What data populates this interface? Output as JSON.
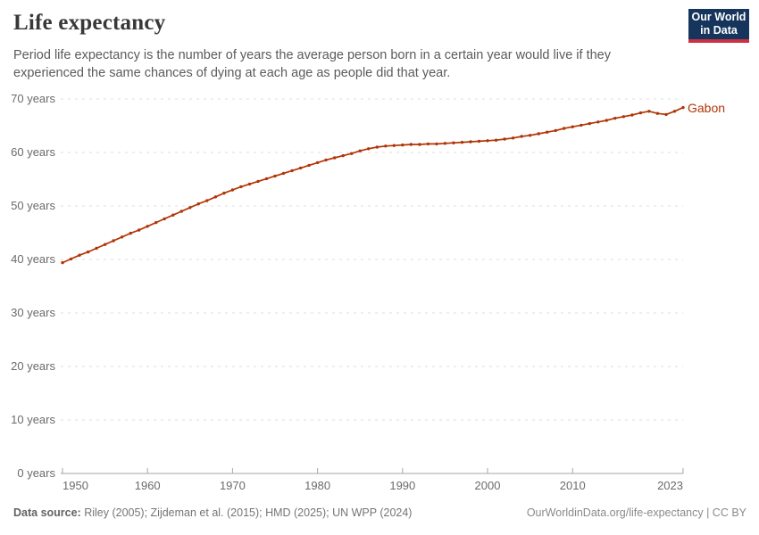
{
  "header": {
    "title": "Life expectancy",
    "subtitle": "Period life expectancy is the number of years the average person born in a certain year would live if they experienced the same chances of dying at each age as people did that year."
  },
  "logo": {
    "line1": "Our World",
    "line2": "in Data",
    "bg_color": "#16355c",
    "accent_color": "#cb3043"
  },
  "chart_data": {
    "type": "line",
    "title": "Life expectancy",
    "entity_label": "Gabon",
    "line_color": "#b13507",
    "grid": "dashed-horizontal",
    "legend_position": "end-of-line-label",
    "xlim": [
      1950,
      2023
    ],
    "ylim": [
      0,
      70
    ],
    "x_ticks": [
      1950,
      1960,
      1970,
      1980,
      1990,
      2000,
      2010,
      2023
    ],
    "x_tick_labels": [
      "1950",
      "1960",
      "1970",
      "1980",
      "1990",
      "2000",
      "2010",
      "2023"
    ],
    "y_ticks": [
      0,
      10,
      20,
      30,
      40,
      50,
      60,
      70
    ],
    "y_tick_labels": [
      "0 years",
      "10 years",
      "20 years",
      "30 years",
      "40 years",
      "50 years",
      "60 years",
      "70 years"
    ],
    "x": [
      1950,
      1951,
      1952,
      1953,
      1954,
      1955,
      1956,
      1957,
      1958,
      1959,
      1960,
      1961,
      1962,
      1963,
      1964,
      1965,
      1966,
      1967,
      1968,
      1969,
      1970,
      1971,
      1972,
      1973,
      1974,
      1975,
      1976,
      1977,
      1978,
      1979,
      1980,
      1981,
      1982,
      1983,
      1984,
      1985,
      1986,
      1987,
      1988,
      1989,
      1990,
      1991,
      1992,
      1993,
      1994,
      1995,
      1996,
      1997,
      1998,
      1999,
      2000,
      2001,
      2002,
      2003,
      2004,
      2005,
      2006,
      2007,
      2008,
      2009,
      2010,
      2011,
      2012,
      2013,
      2014,
      2015,
      2016,
      2017,
      2018,
      2019,
      2020,
      2021,
      2022,
      2023
    ],
    "series": [
      {
        "name": "Gabon",
        "values": [
          39.4,
          40.1,
          40.8,
          41.4,
          42.1,
          42.8,
          43.5,
          44.2,
          44.9,
          45.5,
          46.2,
          46.9,
          47.6,
          48.3,
          49.0,
          49.7,
          50.4,
          51.0,
          51.7,
          52.4,
          53.0,
          53.6,
          54.1,
          54.6,
          55.1,
          55.6,
          56.1,
          56.6,
          57.1,
          57.6,
          58.1,
          58.6,
          59.0,
          59.4,
          59.8,
          60.3,
          60.7,
          61.0,
          61.2,
          61.3,
          61.4,
          61.5,
          61.5,
          61.6,
          61.6,
          61.7,
          61.8,
          61.9,
          62.0,
          62.1,
          62.2,
          62.3,
          62.5,
          62.7,
          63.0,
          63.2,
          63.5,
          63.8,
          64.1,
          64.5,
          64.8,
          65.1,
          65.4,
          65.7,
          66.0,
          66.4,
          66.7,
          67.0,
          67.4,
          67.7,
          67.3,
          67.1,
          67.7,
          68.4
        ]
      }
    ]
  },
  "footer": {
    "source_label": "Data source:",
    "source_text": " Riley (2005); Zijdeman et al. (2015); HMD (2025); UN WPP (2024)",
    "right_text": "OurWorldinData.org/life-expectancy | CC BY"
  }
}
